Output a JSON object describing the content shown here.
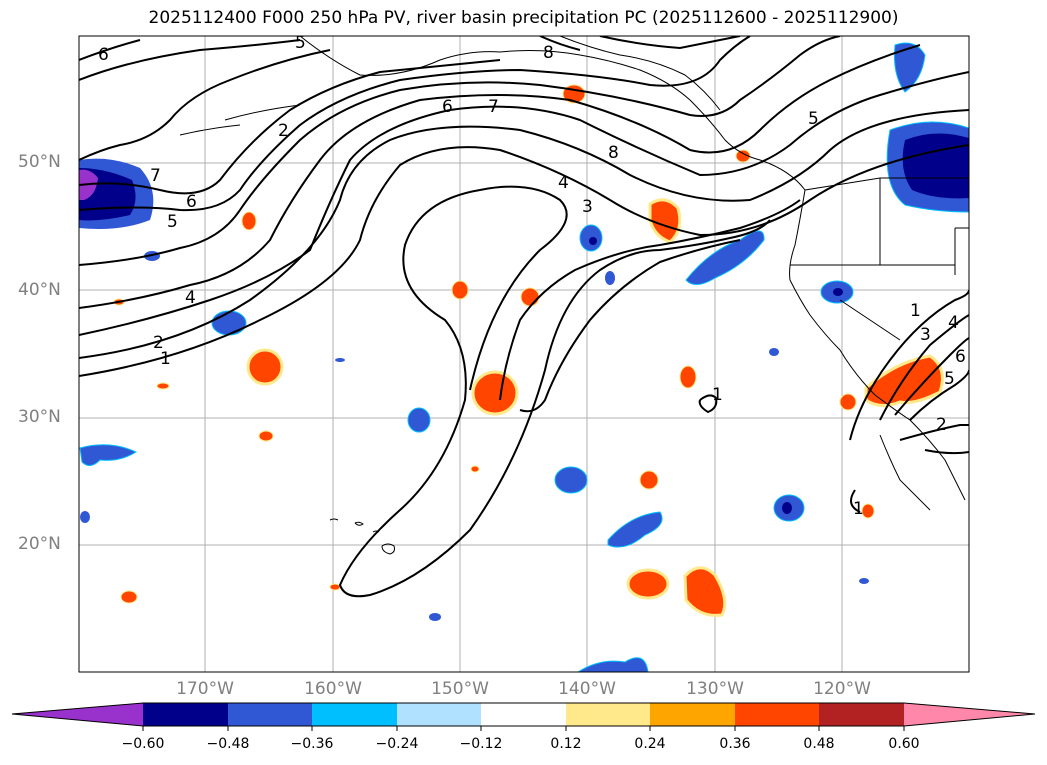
{
  "title": "2025112400 F000 250 hPa PV, river basin precipitation PC (2025112600 - 2025112900)",
  "lat_labels": [
    "50°N",
    "40°N",
    "30°N",
    "20°N"
  ],
  "lon_labels": [
    "170°W",
    "160°W",
    "150°W",
    "140°W",
    "130°W",
    "120°W"
  ],
  "pv_contour_labels": [
    "6",
    "5",
    "8",
    "7",
    "6",
    "2",
    "8",
    "7",
    "5",
    "4",
    "3",
    "6",
    "5",
    "4",
    "2",
    "1",
    "1",
    "1",
    "3",
    "4",
    "5",
    "6",
    "2",
    "1"
  ],
  "colorbar": {
    "tick_labels": [
      "−0.60",
      "−0.48",
      "−0.36",
      "−0.24",
      "−0.12",
      "0.12",
      "0.24",
      "0.36",
      "0.48",
      "0.60"
    ],
    "colors": [
      "#9932cc",
      "#00008b",
      "#3158d4",
      "#00bfff",
      "#b0e2ff",
      "#ffffff",
      "#ffe98a",
      "#ffa500",
      "#ff4500",
      "#b22222",
      "#ff88aa"
    ]
  },
  "colors": {
    "land_line": "#000000",
    "grid": "#b0b0b0",
    "axis_label": "#808080"
  }
}
